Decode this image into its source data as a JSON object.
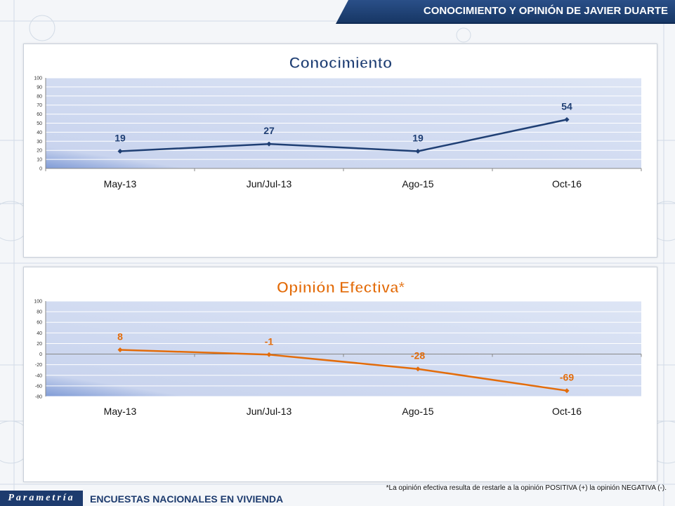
{
  "header": {
    "title": "CONOCIMIENTO Y OPINIÓN DE JAVIER DUARTE"
  },
  "footer": {
    "logo": "Parametría",
    "subtitle": "ENCUESTAS NACIONALES EN VIVIENDA",
    "footnote": "*La opinión efectiva resulta de restarle a la opinión POSITIVA (+) la opinión NEGATIVA (-)."
  },
  "colors": {
    "header": "#1d3b6e",
    "series1": "#1f3f74",
    "series2": "#e36c0a"
  },
  "chart_data": [
    {
      "type": "line",
      "title": "Conocimiento",
      "categories": [
        "May-13",
        "Jun/Jul-13",
        "Ago-15",
        "Oct-16"
      ],
      "series": [
        {
          "values": [
            19,
            27,
            19,
            54
          ]
        }
      ],
      "data_labels": [
        "19",
        "27",
        "19",
        "54"
      ],
      "ylim": [
        0,
        100
      ],
      "yticks": [
        0,
        10,
        20,
        30,
        40,
        50,
        60,
        70,
        80,
        90,
        100
      ],
      "ytick_labels": [
        "0",
        "10",
        "20",
        "30",
        "40",
        "50",
        "60",
        "70",
        "80",
        "90",
        "100"
      ],
      "grid": true,
      "color": "#1f3f74"
    },
    {
      "type": "line",
      "title": "Opinión Efectiva*",
      "categories": [
        "May-13",
        "Jun/Jul-13",
        "Ago-15",
        "Oct-16"
      ],
      "series": [
        {
          "values": [
            8,
            -1,
            -28,
            -69
          ]
        }
      ],
      "data_labels": [
        "8",
        "-1",
        "-28",
        "-69"
      ],
      "ylim": [
        -80,
        100
      ],
      "yticks": [
        -80,
        -60,
        -40,
        -20,
        0,
        20,
        40,
        60,
        80,
        100
      ],
      "ytick_labels": [
        "-80",
        "-60",
        "-40",
        "-20",
        "0",
        "20",
        "40",
        "60",
        "80",
        "100"
      ],
      "grid": true,
      "color": "#e36c0a"
    }
  ]
}
